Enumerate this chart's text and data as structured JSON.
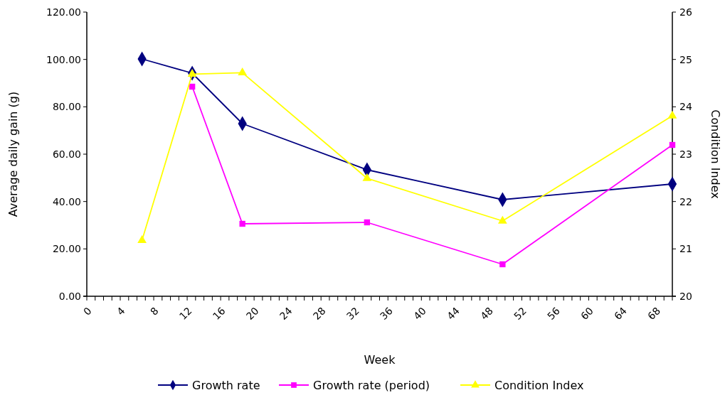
{
  "chart_data": {
    "type": "line",
    "xlabel": "Week",
    "ylabel": "Average daily gain (g)",
    "y2label": "Condition Index",
    "x": [
      6.6,
      12.6,
      18.6,
      33.5,
      49.7,
      70
    ],
    "xlim": [
      0,
      70
    ],
    "xticks": [
      0,
      4,
      8,
      12,
      16,
      20,
      24,
      28,
      32,
      36,
      40,
      44,
      48,
      52,
      56,
      60,
      64,
      68
    ],
    "ylim": [
      0,
      120
    ],
    "yticks": [
      {
        "value": 0,
        "label": "0.00"
      },
      {
        "value": 20,
        "label": "20.00"
      },
      {
        "value": 40,
        "label": "40.00"
      },
      {
        "value": 60,
        "label": "60.00"
      },
      {
        "value": 80,
        "label": "80.00"
      },
      {
        "value": 100,
        "label": "100.00"
      },
      {
        "value": 120,
        "label": "120.00"
      }
    ],
    "y2lim": [
      20,
      26
    ],
    "y2ticks": [
      20,
      21,
      22,
      23,
      24,
      25,
      26
    ],
    "series": [
      {
        "name": "Growth rate",
        "color": "#000080",
        "marker": "diamond",
        "values": [
          100.2,
          94.2,
          72.9,
          53.4,
          40.8,
          47.4
        ]
      },
      {
        "name": "Growth rate (period)",
        "color": "#ff00ff",
        "marker": "square",
        "values": [
          null,
          88.5,
          30.6,
          31.2,
          13.5,
          63.9
        ]
      },
      {
        "name": "Condition Index",
        "color": "#ffff00",
        "marker": "triangle",
        "axis": "y2",
        "values": [
          21.18,
          24.69,
          24.72,
          22.49,
          21.59,
          23.81
        ]
      }
    ],
    "grid": false,
    "legend": "bottom"
  }
}
